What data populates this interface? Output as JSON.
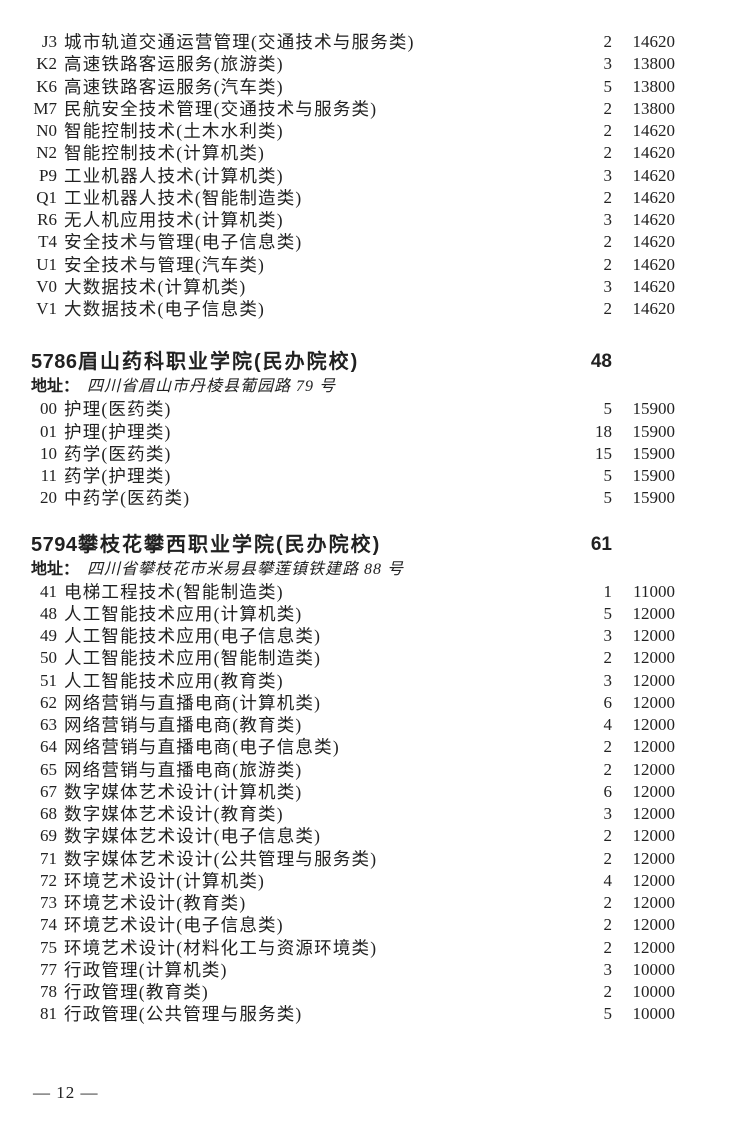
{
  "colors": {
    "background": "#ffffff",
    "text": "#212121"
  },
  "page": {
    "number": "12",
    "label": "— 12 —"
  },
  "sections": [
    {
      "rows": [
        {
          "code": "J3",
          "major": "城市轨道交通运营管理(交通技术与服务类)",
          "count": "2",
          "fee": "14620"
        },
        {
          "code": "K2",
          "major": "高速铁路客运服务(旅游类)",
          "count": "3",
          "fee": "13800"
        },
        {
          "code": "K6",
          "major": "高速铁路客运服务(汽车类)",
          "count": "5",
          "fee": "13800"
        },
        {
          "code": "M7",
          "major": "民航安全技术管理(交通技术与服务类)",
          "count": "2",
          "fee": "13800"
        },
        {
          "code": "N0",
          "major": "智能控制技术(土木水利类)",
          "count": "2",
          "fee": "14620"
        },
        {
          "code": "N2",
          "major": "智能控制技术(计算机类)",
          "count": "2",
          "fee": "14620"
        },
        {
          "code": "P9",
          "major": "工业机器人技术(计算机类)",
          "count": "3",
          "fee": "14620"
        },
        {
          "code": "Q1",
          "major": "工业机器人技术(智能制造类)",
          "count": "2",
          "fee": "14620"
        },
        {
          "code": "R6",
          "major": "无人机应用技术(计算机类)",
          "count": "3",
          "fee": "14620"
        },
        {
          "code": "T4",
          "major": "安全技术与管理(电子信息类)",
          "count": "2",
          "fee": "14620"
        },
        {
          "code": "U1",
          "major": "安全技术与管理(汽车类)",
          "count": "2",
          "fee": "14620"
        },
        {
          "code": "V0",
          "major": "大数据技术(计算机类)",
          "count": "3",
          "fee": "14620"
        },
        {
          "code": "V1",
          "major": "大数据技术(电子信息类)",
          "count": "2",
          "fee": "14620"
        }
      ]
    },
    {
      "code": "5786",
      "name": "眉山药科职业学院(民办院校)",
      "total": "48",
      "address_label": "地址：",
      "address": "四川省眉山市丹棱县葡园路 79 号",
      "rows": [
        {
          "code": "00",
          "major": "护理(医药类)",
          "count": "5",
          "fee": "15900"
        },
        {
          "code": "01",
          "major": "护理(护理类)",
          "count": "18",
          "fee": "15900"
        },
        {
          "code": "10",
          "major": "药学(医药类)",
          "count": "15",
          "fee": "15900"
        },
        {
          "code": "11",
          "major": "药学(护理类)",
          "count": "5",
          "fee": "15900"
        },
        {
          "code": "20",
          "major": "中药学(医药类)",
          "count": "5",
          "fee": "15900"
        }
      ]
    },
    {
      "code": "5794",
      "name": "攀枝花攀西职业学院(民办院校)",
      "total": "61",
      "address_label": "地址：",
      "address": "四川省攀枝花市米易县攀莲镇铁建路 88 号",
      "rows": [
        {
          "code": "41",
          "major": "电梯工程技术(智能制造类)",
          "count": "1",
          "fee": "11000"
        },
        {
          "code": "48",
          "major": "人工智能技术应用(计算机类)",
          "count": "5",
          "fee": "12000"
        },
        {
          "code": "49",
          "major": "人工智能技术应用(电子信息类)",
          "count": "3",
          "fee": "12000"
        },
        {
          "code": "50",
          "major": "人工智能技术应用(智能制造类)",
          "count": "2",
          "fee": "12000"
        },
        {
          "code": "51",
          "major": "人工智能技术应用(教育类)",
          "count": "3",
          "fee": "12000"
        },
        {
          "code": "62",
          "major": "网络营销与直播电商(计算机类)",
          "count": "6",
          "fee": "12000"
        },
        {
          "code": "63",
          "major": "网络营销与直播电商(教育类)",
          "count": "4",
          "fee": "12000"
        },
        {
          "code": "64",
          "major": "网络营销与直播电商(电子信息类)",
          "count": "2",
          "fee": "12000"
        },
        {
          "code": "65",
          "major": "网络营销与直播电商(旅游类)",
          "count": "2",
          "fee": "12000"
        },
        {
          "code": "67",
          "major": "数字媒体艺术设计(计算机类)",
          "count": "6",
          "fee": "12000"
        },
        {
          "code": "68",
          "major": "数字媒体艺术设计(教育类)",
          "count": "3",
          "fee": "12000"
        },
        {
          "code": "69",
          "major": "数字媒体艺术设计(电子信息类)",
          "count": "2",
          "fee": "12000"
        },
        {
          "code": "71",
          "major": "数字媒体艺术设计(公共管理与服务类)",
          "count": "2",
          "fee": "12000"
        },
        {
          "code": "72",
          "major": "环境艺术设计(计算机类)",
          "count": "4",
          "fee": "12000"
        },
        {
          "code": "73",
          "major": "环境艺术设计(教育类)",
          "count": "2",
          "fee": "12000"
        },
        {
          "code": "74",
          "major": "环境艺术设计(电子信息类)",
          "count": "2",
          "fee": "12000"
        },
        {
          "code": "75",
          "major": "环境艺术设计(材料化工与资源环境类)",
          "count": "2",
          "fee": "12000"
        },
        {
          "code": "77",
          "major": "行政管理(计算机类)",
          "count": "3",
          "fee": "10000"
        },
        {
          "code": "78",
          "major": "行政管理(教育类)",
          "count": "2",
          "fee": "10000"
        },
        {
          "code": "81",
          "major": "行政管理(公共管理与服务类)",
          "count": "5",
          "fee": "10000"
        }
      ]
    }
  ]
}
